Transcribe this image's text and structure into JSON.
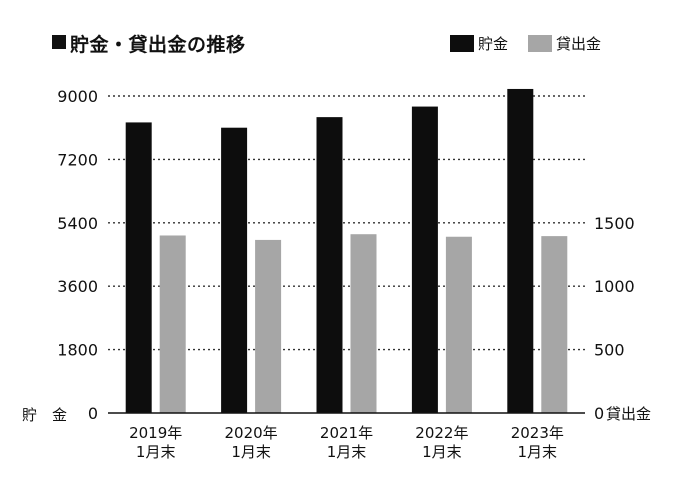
{
  "colors": {
    "savings": "#0d0d0d",
    "loans": "#a6a6a6",
    "grid": "#333333",
    "axis": "#111111"
  },
  "chart_data": {
    "type": "bar",
    "title": "貯金・貸出金の推移",
    "categories": [
      [
        "2019年",
        "1月末"
      ],
      [
        "2020年",
        "1月末"
      ],
      [
        "2021年",
        "1月末"
      ],
      [
        "2022年",
        "1月末"
      ],
      [
        "2023年",
        "1月末"
      ]
    ],
    "series": [
      {
        "name": "貯金",
        "axis": "left",
        "values": [
          8250,
          8100,
          8400,
          8700,
          9200
        ]
      },
      {
        "name": "貸出金",
        "axis": "right",
        "values": [
          1400,
          1365,
          1410,
          1390,
          1395
        ]
      }
    ],
    "ylabel_left": "貯　金",
    "ylabel_right": "貸出金",
    "ylim_left": [
      0,
      9000
    ],
    "yticks_left": [
      0,
      1800,
      3600,
      5400,
      7200,
      9000
    ],
    "ylim_right": [
      0,
      2500
    ],
    "yticks_right": [
      0,
      500,
      1000,
      1500
    ],
    "grid": "horizontal dotted",
    "legend": "top-right"
  }
}
